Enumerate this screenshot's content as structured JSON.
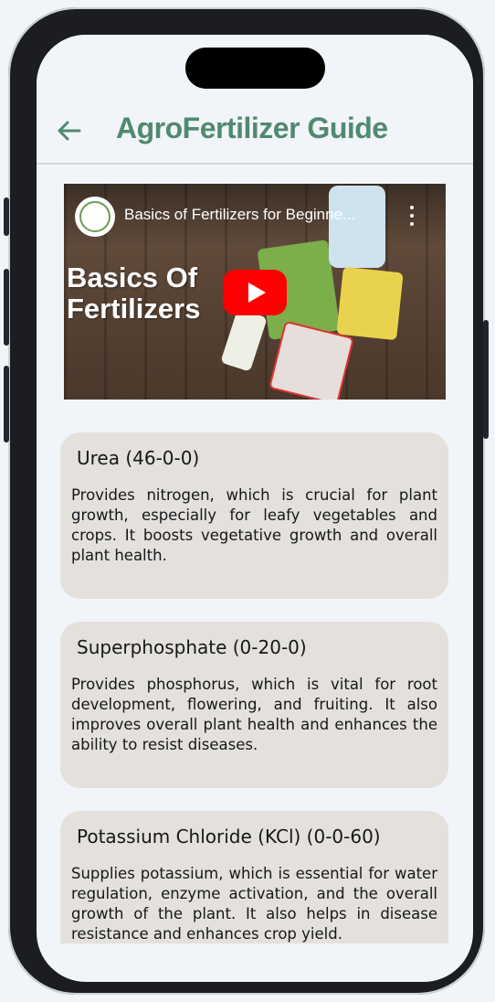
{
  "app": {
    "title": "AgroFertilizer Guide"
  },
  "video": {
    "title": "Basics of Fertilizers for Beginne...",
    "overlay_line1": "Basics Of",
    "overlay_line2": "Fertilizers"
  },
  "fertilizers": [
    {
      "name": "Urea (46-0-0)",
      "description": "Provides nitrogen, which is crucial for plant growth, especially for leafy vegetables and crops. It boosts vegetative growth and overall plant health."
    },
    {
      "name": "Superphosphate (0-20-0)",
      "description": "Provides phosphorus, which is vital for root development, flowering, and fruiting. It also improves overall plant health and enhances the ability to resist diseases."
    },
    {
      "name": "Potassium Chloride (KCl) (0-0-60)",
      "description": "Supplies potassium, which is essential for water regulation, enzyme activation, and the overall growth of the plant. It also helps in disease resistance and enhances crop yield."
    }
  ],
  "colors": {
    "accent": "#4f8a70",
    "card_bg": "#e4e0db",
    "page_bg": "#f1f4f8",
    "play_button": "#ff0000"
  }
}
